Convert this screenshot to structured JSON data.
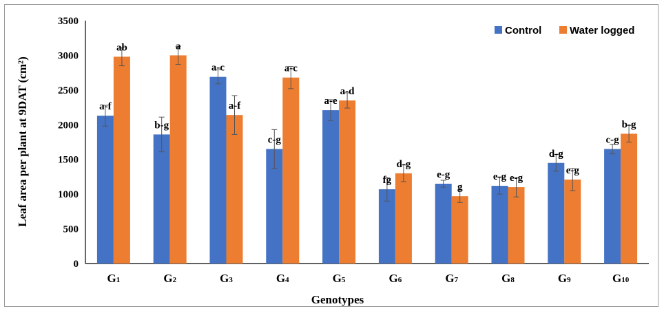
{
  "chart_data": {
    "type": "bar",
    "categories": [
      {
        "base": "G",
        "sub": "1"
      },
      {
        "base": "G",
        "sub": "2"
      },
      {
        "base": "G",
        "sub": "3"
      },
      {
        "base": "G",
        "sub": "4"
      },
      {
        "base": "G",
        "sub": "5"
      },
      {
        "base": "G",
        "sub": "6"
      },
      {
        "base": "G",
        "sub": "7"
      },
      {
        "base": "G",
        "sub": "8"
      },
      {
        "base": "G",
        "sub": "9"
      },
      {
        "base": "G",
        "sub": "10"
      }
    ],
    "series": [
      {
        "name": "Control",
        "color": "#4472C4",
        "values": [
          2130,
          1860,
          2690,
          1650,
          2210,
          1070,
          1150,
          1120,
          1450,
          1650
        ],
        "errors": [
          150,
          250,
          100,
          280,
          150,
          170,
          50,
          120,
          120,
          70
        ],
        "labels": [
          "a-f",
          "b-g",
          "a-c",
          "c-g",
          "a-e",
          "fg",
          "e-g",
          "e-g",
          "d-g",
          "c-g"
        ]
      },
      {
        "name": "Water logged",
        "color": "#ED7D31",
        "values": [
          2980,
          3000,
          2140,
          2680,
          2350,
          1300,
          970,
          1100,
          1210,
          1870
        ],
        "errors": [
          130,
          130,
          280,
          160,
          110,
          120,
          90,
          140,
          160,
          120
        ],
        "labels": [
          "ab",
          "a",
          "a-f",
          "a-c",
          "a-d",
          "d-g",
          "g",
          "e-g",
          "e-g",
          "b-g"
        ]
      }
    ],
    "xlabel": "Genotypes",
    "ylabel": "Leaf area per plant at 9DAT (cm²)",
    "ylim": [
      0,
      3500
    ],
    "yticks": [
      "0",
      "500",
      "1000",
      "1500",
      "2000",
      "2500",
      "3000",
      "3500"
    ],
    "ytick_values": [
      0,
      500,
      1000,
      1500,
      2000,
      2500,
      3000,
      3500
    ],
    "grid": false,
    "legend_position": "top-right"
  }
}
